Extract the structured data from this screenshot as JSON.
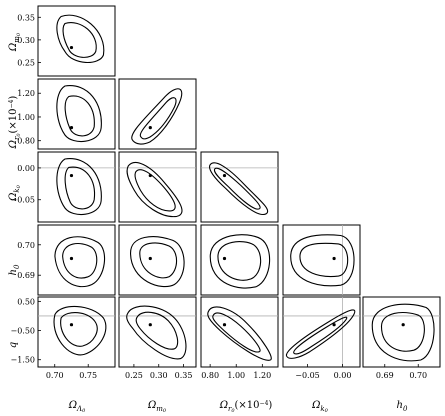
{
  "chart_data": {
    "type": "corner-contour",
    "title": "",
    "contour_levels": [
      "inner",
      "outer"
    ],
    "parameters": [
      {
        "id": "OL",
        "label": "Ω_Λ0",
        "xticks": [
          "0.70",
          "0.75"
        ],
        "yticks": [],
        "range": [
          0.675,
          0.79
        ],
        "best_fit": 0.725
      },
      {
        "id": "Om",
        "label": "Ω_m0",
        "xticks": [
          "0.25",
          "0.30",
          "0.35"
        ],
        "yticks": [
          "0.35",
          "0.30",
          "0.25"
        ],
        "range": [
          0.22,
          0.375
        ],
        "best_fit": 0.283
      },
      {
        "id": "Or",
        "label": "Ω_r0 (×10^-4)",
        "xticks": [
          "0.80",
          "1.00",
          "1.20"
        ],
        "yticks": [
          "1.20",
          "1.00",
          "0.80"
        ],
        "range": [
          0.73,
          1.32
        ],
        "best_fit": 0.91
      },
      {
        "id": "Ok",
        "label": "Ω_k0",
        "xticks": [
          "-0.05",
          "0.00"
        ],
        "yticks": [
          "0.00",
          "-0.05"
        ],
        "range": [
          -0.085,
          0.025
        ],
        "best_fit": -0.012
      },
      {
        "id": "h",
        "label": "h0",
        "xticks": [
          "0.69",
          "0.70"
        ],
        "yticks": [
          "0.70",
          "0.69"
        ],
        "range": [
          0.6835,
          0.7065
        ],
        "best_fit": 0.6955
      },
      {
        "id": "q",
        "label": "q",
        "xticks": [],
        "yticks": [
          "0.50",
          "-0.50",
          "-1.50"
        ],
        "range": [
          -1.75,
          0.65
        ],
        "best_fit": -0.3
      }
    ],
    "reference_lines": {
      "Ok": 0.0,
      "q": 0.0
    },
    "panels": [
      {
        "x": "OL",
        "y": "Om"
      },
      {
        "x": "OL",
        "y": "Or"
      },
      {
        "x": "Om",
        "y": "Or"
      },
      {
        "x": "OL",
        "y": "Ok"
      },
      {
        "x": "Om",
        "y": "Ok"
      },
      {
        "x": "Or",
        "y": "Ok"
      },
      {
        "x": "OL",
        "y": "h"
      },
      {
        "x": "Om",
        "y": "h"
      },
      {
        "x": "Or",
        "y": "h"
      },
      {
        "x": "Ok",
        "y": "h"
      },
      {
        "x": "OL",
        "y": "q"
      },
      {
        "x": "Om",
        "y": "q"
      },
      {
        "x": "Or",
        "y": "q"
      },
      {
        "x": "Ok",
        "y": "q"
      },
      {
        "x": "h",
        "y": "q"
      }
    ]
  }
}
